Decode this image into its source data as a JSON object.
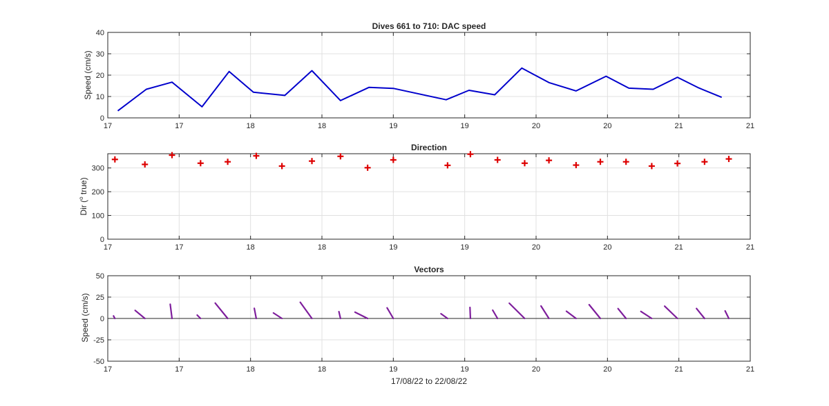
{
  "figure": {
    "xlabel": "17/08/22 to 22/08/22",
    "x_tick_labels": [
      "17",
      "17",
      "18",
      "18",
      "19",
      "19",
      "20",
      "20",
      "21",
      "21"
    ],
    "xlim": [
      17.0,
      21.5
    ]
  },
  "panels": {
    "speed": {
      "title": "Dives 661 to 710: DAC speed",
      "ylabel": "Speed (cm/s)",
      "y_ticks": [
        "0",
        "10",
        "20",
        "30",
        "40"
      ]
    },
    "direction": {
      "title": "Direction",
      "ylabel_prefix": "Dir (",
      "ylabel_sup": "o",
      "ylabel_suffix": " true)",
      "y_ticks": [
        "0",
        "100",
        "200",
        "300"
      ]
    },
    "vectors": {
      "title": "Vectors",
      "ylabel": "Speed (cm/s)",
      "y_ticks": [
        "-50",
        "-25",
        "0",
        "25",
        "50"
      ]
    }
  },
  "colors": {
    "speed_line": "#0000cc",
    "direction_marker": "#dd0000",
    "vector": "#7e1e9c",
    "axis": "#262626",
    "grid": "#e0e0e0"
  },
  "chart_data": [
    {
      "type": "line",
      "title": "Dives 661 to 710: DAC speed",
      "xlabel": "",
      "ylabel": "Speed (cm/s)",
      "xlim": [
        17.0,
        21.5
      ],
      "ylim": [
        0,
        40
      ],
      "grid": true,
      "series": [
        {
          "x": [
            17.07,
            17.27,
            17.45,
            17.66,
            17.85,
            18.02,
            18.24,
            18.43,
            18.63,
            18.83,
            19.0,
            19.37,
            19.53,
            19.71,
            19.9,
            20.09,
            20.28,
            20.49,
            20.65,
            20.82,
            20.99,
            21.14,
            21.3
          ],
          "y": [
            3.3,
            13.4,
            16.7,
            5.2,
            21.7,
            12.0,
            10.5,
            22.1,
            8.1,
            14.3,
            13.8,
            8.5,
            12.9,
            10.8,
            23.3,
            16.5,
            12.6,
            19.5,
            13.9,
            13.4,
            19.0,
            14.0,
            9.6
          ]
        }
      ]
    },
    {
      "type": "scatter",
      "title": "Direction",
      "xlabel": "",
      "ylabel": "Dir (o true)",
      "xlim": [
        17.0,
        21.5
      ],
      "ylim": [
        0,
        360
      ],
      "grid": true,
      "marker": "+",
      "series": [
        {
          "x": [
            17.05,
            17.26,
            17.45,
            17.65,
            17.84,
            18.04,
            18.22,
            18.43,
            18.63,
            18.82,
            19.0,
            19.38,
            19.54,
            19.73,
            19.92,
            20.09,
            20.28,
            20.45,
            20.63,
            20.81,
            20.99,
            21.18,
            21.35
          ],
          "y": [
            336,
            315,
            354,
            320,
            326,
            351,
            308,
            329,
            349,
            301,
            334,
            311,
            358,
            334,
            320,
            332,
            312,
            326,
            326,
            308,
            319,
            326,
            338
          ]
        }
      ]
    },
    {
      "type": "vector",
      "title": "Vectors",
      "xlabel": "17/08/22 to 22/08/22",
      "ylabel": "Speed (cm/s)",
      "xlim": [
        17.0,
        21.5
      ],
      "ylim": [
        -50,
        50
      ],
      "grid": true,
      "series": [
        {
          "x": [
            17.05,
            17.26,
            17.45,
            17.65,
            17.84,
            18.04,
            18.22,
            18.43,
            18.63,
            18.82,
            19.0,
            19.38,
            19.54,
            19.73,
            19.92,
            20.09,
            20.28,
            20.45,
            20.63,
            20.81,
            20.99,
            21.18,
            21.35
          ],
          "speed": [
            3.3,
            13.4,
            16.7,
            5.2,
            21.7,
            12.0,
            10.5,
            22.1,
            8.1,
            14.3,
            13.8,
            8.5,
            12.9,
            10.8,
            23.3,
            16.5,
            12.6,
            19.5,
            13.9,
            13.4,
            19.0,
            14.0,
            9.6
          ],
          "direction_deg": [
            336,
            315,
            354,
            320,
            326,
            351,
            308,
            329,
            349,
            301,
            334,
            311,
            358,
            334,
            320,
            332,
            312,
            326,
            326,
            308,
            319,
            326,
            338
          ]
        }
      ]
    }
  ]
}
